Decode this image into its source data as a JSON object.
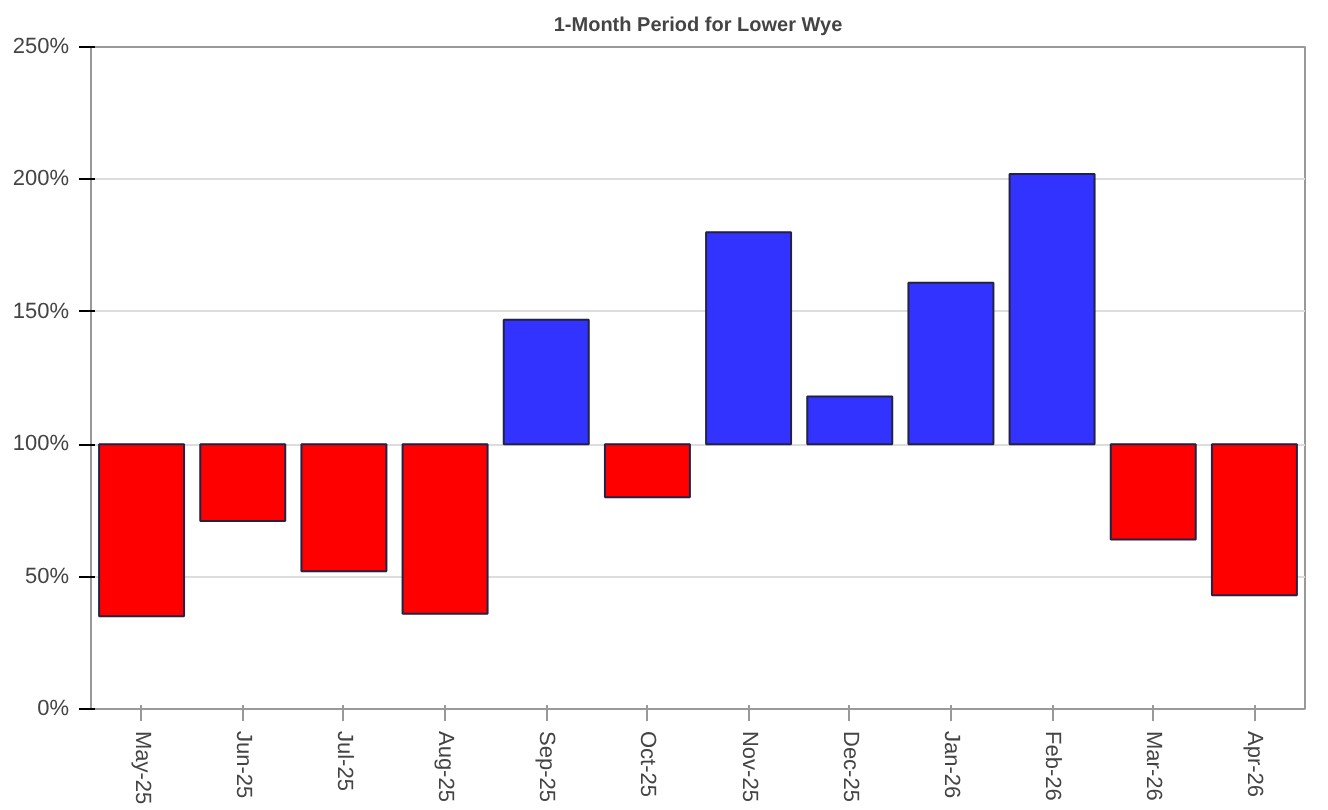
{
  "chart_data": {
    "type": "bar",
    "title": "1-Month Period for Lower Wye",
    "categories": [
      "May-25",
      "Jun-25",
      "Jul-25",
      "Aug-25",
      "Sep-25",
      "Oct-25",
      "Nov-25",
      "Dec-25",
      "Jan-26",
      "Feb-26",
      "Mar-26",
      "Apr-26"
    ],
    "base": [
      100,
      100,
      100,
      100,
      100,
      100,
      100,
      100,
      100,
      100,
      100,
      100
    ],
    "values": [
      -65,
      -29,
      -48,
      -64,
      47,
      -20,
      80,
      18,
      61,
      102,
      -36,
      -57
    ],
    "colors": [
      "#ff0000",
      "#ff0000",
      "#ff0000",
      "#ff0000",
      "#3333ff",
      "#ff0000",
      "#3333ff",
      "#3333ff",
      "#3333ff",
      "#3333ff",
      "#ff0000",
      "#ff0000"
    ],
    "ylim": [
      0,
      250
    ],
    "yticks": [
      {
        "value": 0,
        "label": "0%"
      },
      {
        "value": 50,
        "label": "50%"
      },
      {
        "value": 100,
        "label": "100%"
      },
      {
        "value": 150,
        "label": "150%"
      },
      {
        "value": 200,
        "label": "200%"
      },
      {
        "value": 250,
        "label": "250%"
      }
    ],
    "grid": "y"
  }
}
